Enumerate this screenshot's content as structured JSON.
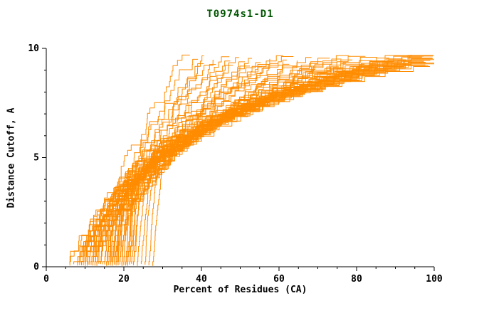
{
  "chart_data": {
    "type": "line",
    "title": "T0974s1-D1",
    "title_color": "#005500",
    "xlabel": "Percent of Residues (CA)",
    "ylabel": "Distance Cutoff, A",
    "xlim": [
      0,
      100
    ],
    "ylim": [
      0,
      10
    ],
    "x_ticks": [
      0,
      20,
      40,
      60,
      80,
      100
    ],
    "x_minor_step": 5,
    "y_ticks": [
      0,
      5,
      10
    ],
    "y_minor_step": 1,
    "grid": false,
    "legend": null,
    "line_color": "#ff8c00",
    "axis_color": "#000000",
    "series_count": 64,
    "series_format": [
      "x_start_percent",
      "x_end_percent",
      "shape_exponent",
      "seed"
    ],
    "series": [
      [
        6,
        36,
        1.0,
        3
      ],
      [
        8,
        38,
        1.1,
        11
      ],
      [
        7,
        40,
        1.0,
        19
      ],
      [
        9,
        41,
        1.2,
        27
      ],
      [
        6,
        43,
        1.1,
        35
      ],
      [
        10,
        44,
        1.3,
        43
      ],
      [
        8,
        46,
        1.2,
        51
      ],
      [
        11,
        47,
        1.2,
        59
      ],
      [
        7,
        48,
        1.3,
        67
      ],
      [
        12,
        50,
        1.2,
        75
      ],
      [
        9,
        51,
        1.4,
        83
      ],
      [
        8,
        52,
        1.3,
        91
      ],
      [
        13,
        54,
        1.4,
        99
      ],
      [
        10,
        55,
        1.3,
        107
      ],
      [
        9,
        56,
        1.5,
        115
      ],
      [
        14,
        58,
        1.4,
        123
      ],
      [
        8,
        59,
        1.5,
        131
      ],
      [
        11,
        60,
        1.6,
        139
      ],
      [
        10,
        62,
        1.5,
        147
      ],
      [
        15,
        63,
        1.6,
        155
      ],
      [
        9,
        64,
        1.7,
        163
      ],
      [
        12,
        66,
        1.6,
        171
      ],
      [
        11,
        67,
        1.8,
        179
      ],
      [
        16,
        68,
        1.7,
        187
      ],
      [
        10,
        70,
        1.8,
        195
      ],
      [
        13,
        71,
        1.9,
        203
      ],
      [
        12,
        72,
        1.8,
        211
      ],
      [
        17,
        74,
        2.0,
        219
      ],
      [
        11,
        75,
        1.9,
        227
      ],
      [
        14,
        76,
        2.1,
        235
      ],
      [
        13,
        78,
        2.0,
        243
      ],
      [
        18,
        79,
        2.2,
        251
      ],
      [
        12,
        80,
        2.1,
        259
      ],
      [
        15,
        81,
        2.3,
        267
      ],
      [
        14,
        82,
        2.2,
        275
      ],
      [
        19,
        84,
        2.4,
        283
      ],
      [
        13,
        85,
        2.3,
        291
      ],
      [
        16,
        86,
        2.5,
        299
      ],
      [
        15,
        87,
        2.4,
        307
      ],
      [
        20,
        88,
        2.6,
        315
      ],
      [
        14,
        89,
        2.5,
        323
      ],
      [
        17,
        90,
        2.7,
        331
      ],
      [
        16,
        91,
        2.6,
        339
      ],
      [
        21,
        92,
        2.8,
        347
      ],
      [
        15,
        93,
        2.7,
        355
      ],
      [
        18,
        94,
        2.9,
        363
      ],
      [
        17,
        94,
        2.8,
        371
      ],
      [
        22,
        95,
        3.0,
        379
      ],
      [
        16,
        96,
        2.9,
        387
      ],
      [
        19,
        96,
        3.1,
        395
      ],
      [
        18,
        97,
        3.0,
        403
      ],
      [
        23,
        97,
        3.2,
        411
      ],
      [
        17,
        98,
        3.1,
        419
      ],
      [
        20,
        98,
        3.3,
        427
      ],
      [
        19,
        99,
        3.2,
        435
      ],
      [
        24,
        99,
        3.4,
        443
      ],
      [
        18,
        100,
        3.3,
        451
      ],
      [
        21,
        100,
        3.5,
        459
      ],
      [
        20,
        100,
        3.4,
        467
      ],
      [
        25,
        100,
        3.6,
        475
      ],
      [
        19,
        100,
        3.5,
        483
      ],
      [
        22,
        100,
        3.7,
        491
      ],
      [
        21,
        100,
        3.6,
        499
      ],
      [
        26,
        100,
        3.8,
        507
      ]
    ]
  }
}
